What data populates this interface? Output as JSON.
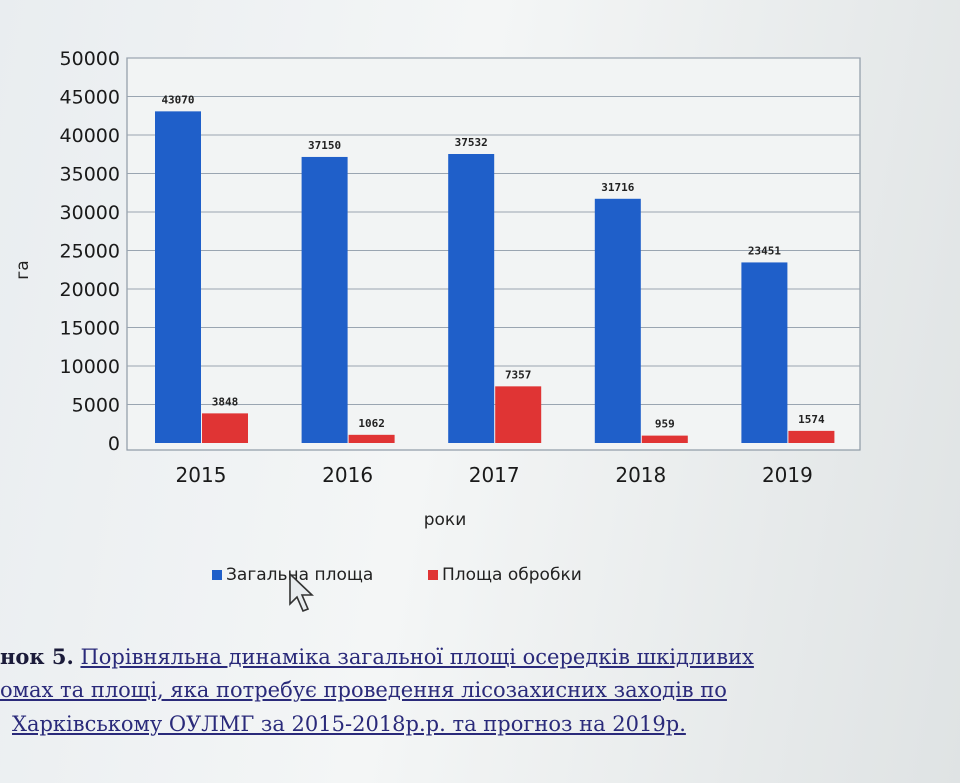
{
  "chart_data": {
    "type": "bar",
    "categories": [
      "2015",
      "2016",
      "2017",
      "2018",
      "2019"
    ],
    "series": [
      {
        "name": "Загальна площа",
        "values": [
          43070,
          37150,
          37532,
          31716,
          23451
        ],
        "color": "#1f5fc9"
      },
      {
        "name": "Площа обробки",
        "values": [
          3848,
          1062,
          7357,
          959,
          1574
        ],
        "color": "#e03434"
      }
    ],
    "data_labels": [
      [
        "43070",
        "37150",
        "37532",
        "31716",
        "23451"
      ],
      [
        "3848",
        "1062",
        "7357",
        "959",
        "1574"
      ]
    ],
    "xlabel": "роки",
    "ylabel": "га",
    "ylim": [
      0,
      50000
    ],
    "yticks": [
      "50000",
      "45000",
      "40000",
      "35000",
      "30000",
      "25000",
      "20000",
      "15000",
      "10000",
      "5000",
      "0"
    ],
    "grid": true,
    "legend_position": "bottom"
  },
  "caption": {
    "prefix": "нок 5.",
    "line1": "Порівняльна динаміка загальної площі осередків шкідливих",
    "line2": "омах та площі, яка потребує проведення лісозахисних заходів по",
    "line3": "Харківському ОУЛМГ за 2015-2018р.р. та прогноз на 2019р."
  }
}
